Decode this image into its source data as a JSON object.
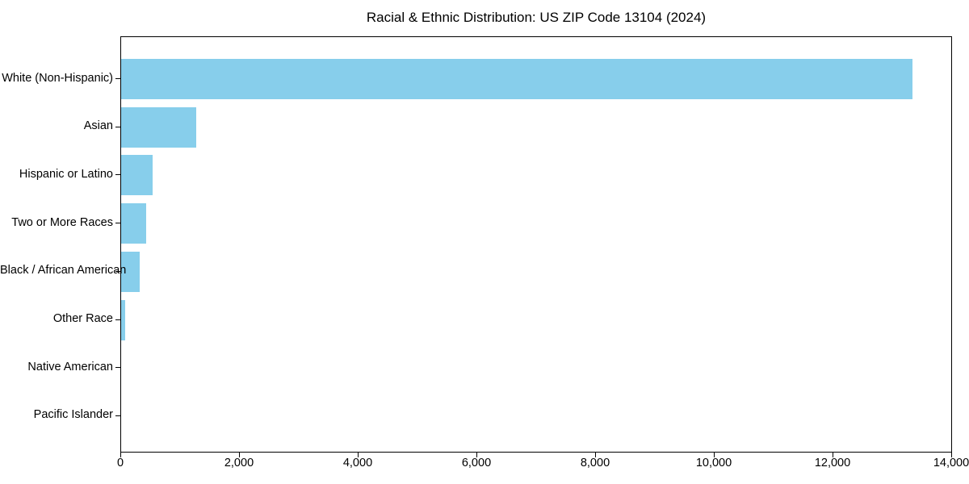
{
  "chart_data": {
    "type": "bar",
    "orientation": "horizontal",
    "title": "Racial & Ethnic Distribution: US ZIP Code 13104 (2024)",
    "categories": [
      "White (Non-Hispanic)",
      "Asian",
      "Hispanic or Latino",
      "Two or More Races",
      "Black / African American",
      "Other Race",
      "Native American",
      "Pacific Islander"
    ],
    "values": [
      13340,
      1260,
      535,
      420,
      310,
      70,
      0,
      0
    ],
    "xlabel": "",
    "ylabel": "",
    "xlim": [
      0,
      14000
    ],
    "x_ticks": [
      0,
      2000,
      4000,
      6000,
      8000,
      10000,
      12000,
      14000
    ],
    "x_tick_labels": [
      "0",
      "2,000",
      "4,000",
      "6,000",
      "8,000",
      "10,000",
      "12,000",
      "14,000"
    ],
    "bar_color": "#87CEEB",
    "axis_color": "#000000",
    "text_color": "#000000",
    "grid": "off",
    "legend": "none"
  }
}
